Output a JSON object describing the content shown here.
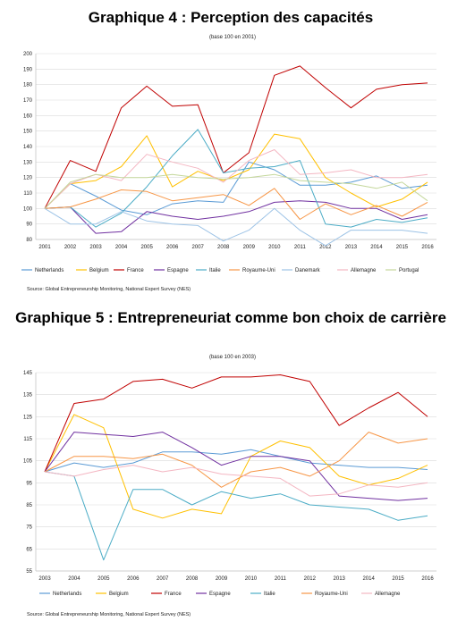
{
  "chart_data": [
    {
      "type": "line",
      "title": "Graphique 4 : Perception des capacités",
      "subtitle": "(base 100 en 2001)",
      "source": "Source: Global Entrepreneurship Monitoring, National Expert Survey (NES)",
      "x": [
        "2001",
        "2002",
        "2003",
        "2004",
        "2005",
        "2006",
        "2007",
        "2008",
        "2009",
        "2010",
        "2011",
        "2012",
        "2013",
        "2014",
        "2015",
        "2016"
      ],
      "ylim": [
        80,
        200
      ],
      "yticks": [
        80,
        90,
        100,
        110,
        120,
        130,
        140,
        150,
        160,
        170,
        180,
        190,
        200
      ],
      "grid": true,
      "legend_position": "bottom",
      "series": [
        {
          "name": "Netherlands",
          "color": "#5b9bd5",
          "values": [
            100,
            116,
            108,
            99,
            96,
            103,
            105,
            104,
            130,
            125,
            115,
            115,
            117,
            121,
            113,
            115
          ]
        },
        {
          "name": "Belgium",
          "color": "#ffc000",
          "values": [
            100,
            116,
            118,
            127,
            147,
            114,
            124,
            118,
            125,
            148,
            145,
            120,
            110,
            101,
            106,
            117
          ]
        },
        {
          "name": "France",
          "color": "#c00000",
          "values": [
            100,
            131,
            124,
            165,
            179,
            166,
            167,
            123,
            136,
            186,
            192,
            178,
            165,
            177,
            180,
            181
          ]
        },
        {
          "name": "Espagne",
          "color": "#7030a0",
          "values": [
            100,
            101,
            84,
            85,
            98,
            95,
            93,
            95,
            98,
            104,
            105,
            104,
            100,
            100,
            93,
            96
          ]
        },
        {
          "name": "Italie",
          "color": "#4bacc6",
          "values": [
            100,
            101,
            88,
            97,
            114,
            134,
            151,
            123,
            126,
            127,
            131,
            90,
            88,
            93,
            91,
            94
          ]
        },
        {
          "name": "Royaume-Uni",
          "color": "#f79646",
          "values": [
            100,
            101,
            106,
            112,
            111,
            105,
            107,
            109,
            102,
            113,
            93,
            103,
            96,
            102,
            95,
            104
          ]
        },
        {
          "name": "Danemark",
          "color": "#9dc3e6",
          "values": [
            100,
            90,
            90,
            98,
            92,
            90,
            89,
            79,
            86,
            100,
            86,
            76,
            86,
            86,
            86,
            84
          ]
        },
        {
          "name": "Allemagne",
          "color": "#f4b6c2",
          "values": [
            100,
            116,
            122,
            118,
            135,
            130,
            126,
            117,
            131,
            138,
            122,
            123,
            125,
            120,
            120,
            122
          ]
        },
        {
          "name": "Portugal",
          "color": "#c4d79b",
          "values": [
            100,
            117,
            122,
            120,
            120,
            122,
            120,
            119,
            120,
            122,
            118,
            117,
            116,
            113,
            117,
            105
          ]
        }
      ]
    },
    {
      "type": "line",
      "title": "Graphique 5 : Entrepreneuriat comme bon choix de carrière",
      "subtitle": "(base 100 en 2003)",
      "source": "Source: Global Entrepreneurship Monitoring, National Expert Survey (NES)",
      "x": [
        "2003",
        "2004",
        "2005",
        "2006",
        "2007",
        "2008",
        "2009",
        "2010",
        "2011",
        "2012",
        "2013",
        "2014",
        "2015",
        "2016"
      ],
      "ylim": [
        55,
        145
      ],
      "yticks": [
        55,
        65,
        75,
        85,
        95,
        105,
        115,
        125,
        135,
        145
      ],
      "grid": true,
      "legend_position": "bottom",
      "series": [
        {
          "name": "Netherlands",
          "color": "#5b9bd5",
          "values": [
            100,
            104,
            102,
            104,
            109,
            109,
            108,
            110,
            107,
            104,
            103,
            102,
            102,
            101
          ]
        },
        {
          "name": "Belgium",
          "color": "#ffc000",
          "values": [
            100,
            126,
            120,
            83,
            79,
            83,
            81,
            107,
            114,
            111,
            98,
            94,
            97,
            103
          ]
        },
        {
          "name": "France",
          "color": "#c00000",
          "values": [
            100,
            131,
            133,
            141,
            142,
            138,
            143,
            143,
            144,
            141,
            121,
            129,
            136,
            125
          ]
        },
        {
          "name": "Espagne",
          "color": "#7030a0",
          "values": [
            100,
            118,
            117,
            116,
            118,
            111,
            103,
            107,
            107,
            105,
            89,
            88,
            87,
            88
          ]
        },
        {
          "name": "Italie",
          "color": "#4bacc6",
          "values": [
            100,
            98,
            60,
            92,
            92,
            85,
            91,
            88,
            90,
            85,
            84,
            83,
            78,
            80
          ]
        },
        {
          "name": "Royaume-Uni",
          "color": "#f79646",
          "values": [
            100,
            107,
            107,
            106,
            108,
            103,
            93,
            100,
            102,
            98,
            105,
            118,
            113,
            115
          ]
        },
        {
          "name": "Allemagne",
          "color": "#f4b6c2",
          "values": [
            100,
            98,
            101,
            103,
            100,
            102,
            99,
            98,
            97,
            89,
            90,
            94,
            93,
            95
          ]
        }
      ]
    }
  ]
}
